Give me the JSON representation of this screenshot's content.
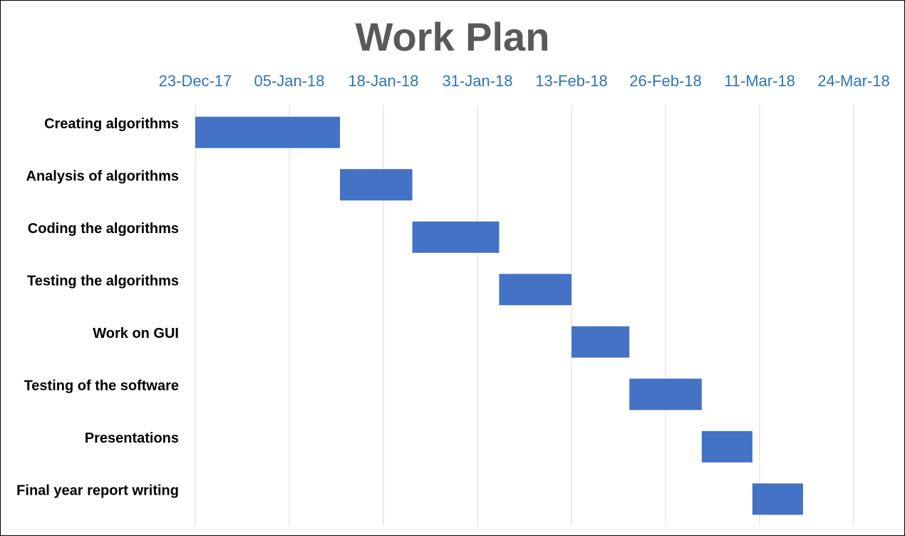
{
  "chart_data": {
    "type": "bar",
    "subtype": "gantt",
    "title": "Work Plan",
    "xlabel": "",
    "ylabel": "",
    "x_axis_position": "top",
    "grid": true,
    "legend": "none",
    "xlim": [
      "2017-12-23",
      "2018-03-24"
    ],
    "x_ticks": [
      "23-Dec-17",
      "05-Jan-18",
      "18-Jan-18",
      "31-Jan-18",
      "13-Feb-18",
      "26-Feb-18",
      "11-Mar-18",
      "24-Mar-18"
    ],
    "categories": [
      "Creating algorithms",
      "Analysis of algorithms",
      "Coding the algorithms",
      "Testing the algorithms",
      "Work on GUI",
      "Testing of the software",
      "Presentations",
      "Final year report writing"
    ],
    "series": [
      {
        "start": [
          "2017-12-23",
          "2018-01-12",
          "2018-01-22",
          "2018-02-03",
          "2018-02-13",
          "2018-02-21",
          "2018-03-03",
          "2018-03-10"
        ],
        "end": [
          "2018-01-12",
          "2018-01-22",
          "2018-02-03",
          "2018-02-13",
          "2018-02-21",
          "2018-03-03",
          "2018-03-10",
          "2018-03-17"
        ]
      }
    ],
    "colors": {
      "bar": "#4472C4",
      "title": "#595959",
      "tick_label": "#2E75B6",
      "category_label": "#000000",
      "grid": "#D9D9D9"
    }
  }
}
